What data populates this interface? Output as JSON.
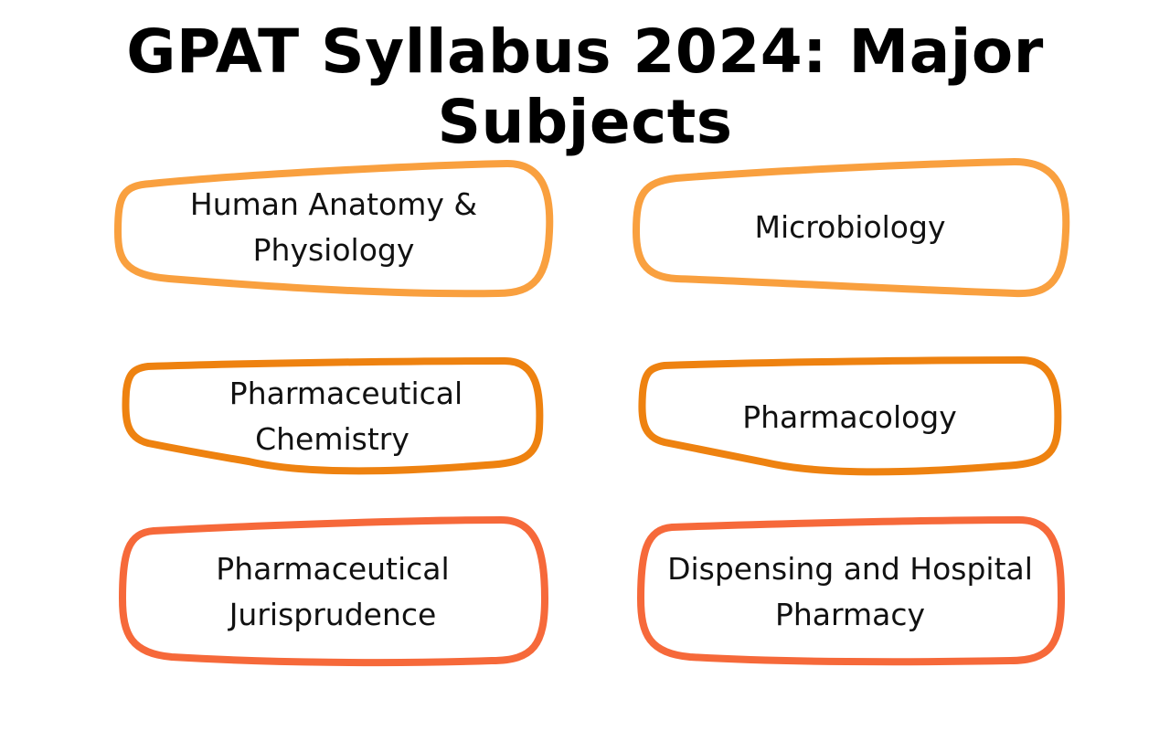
{
  "title": "GPAT Syllabus 2024: Major Subjects",
  "colors": {
    "row1": "#F9A03F",
    "row2": "#EE8210",
    "row3": "#F6693A"
  },
  "subjects": [
    {
      "line1": "Human Anatomy &",
      "line2": "Physiology"
    },
    {
      "line1": "Microbiology",
      "line2": ""
    },
    {
      "line1": "Pharmaceutical",
      "line2": "Chemistry"
    },
    {
      "line1": "Pharmacology",
      "line2": ""
    },
    {
      "line1": "Pharmaceutical",
      "line2": "Jurisprudence"
    },
    {
      "line1": "Dispensing and Hospital",
      "line2": "Pharmacy"
    }
  ]
}
